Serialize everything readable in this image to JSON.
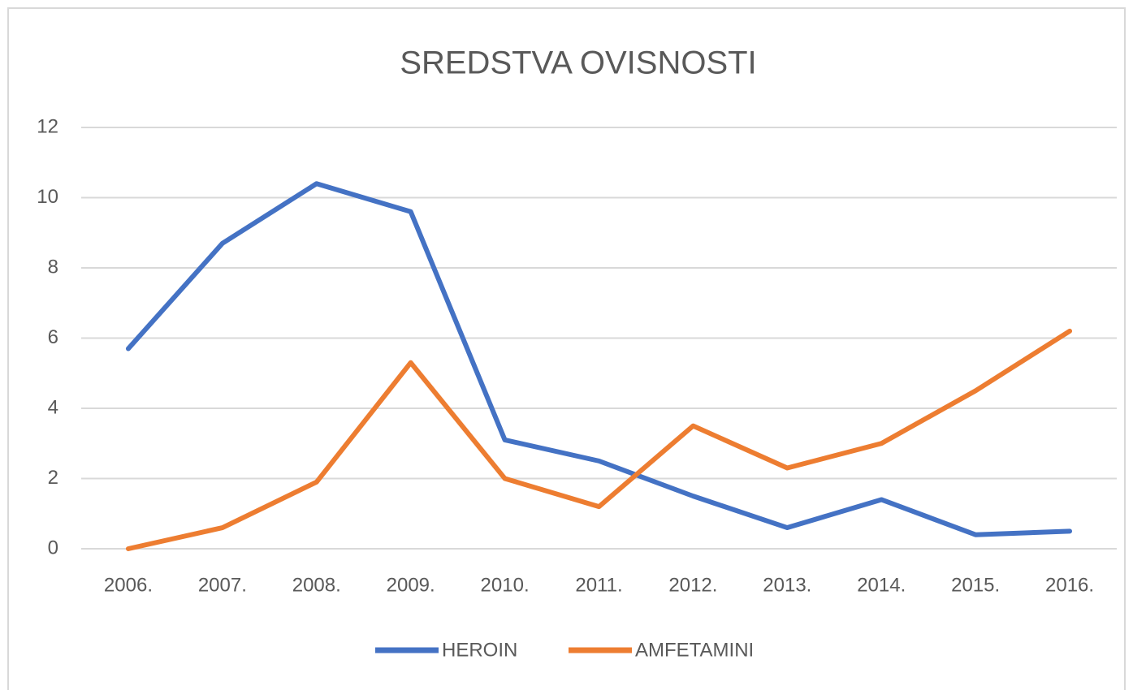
{
  "chart_data": {
    "type": "line",
    "title": "SREDSTVA OVISNOSTI",
    "categories": [
      "2006.",
      "2007.",
      "2008.",
      "2009.",
      "2010.",
      "2011.",
      "2012.",
      "2013.",
      "2014.",
      "2015.",
      "2016."
    ],
    "series": [
      {
        "name": "HEROIN",
        "color": "#4472c4",
        "values": [
          5.7,
          8.7,
          10.4,
          9.6,
          3.1,
          2.5,
          1.5,
          0.6,
          1.4,
          0.4,
          0.5
        ]
      },
      {
        "name": "AMFETAMINI",
        "color": "#ed7d31",
        "values": [
          0,
          0.6,
          1.9,
          5.3,
          2.0,
          1.2,
          3.5,
          2.3,
          3.0,
          4.5,
          6.2
        ]
      }
    ],
    "ylim": [
      0,
      12
    ],
    "yticks": [
      0,
      2,
      4,
      6,
      8,
      10,
      12
    ],
    "grid": true,
    "legend": "bottom"
  }
}
